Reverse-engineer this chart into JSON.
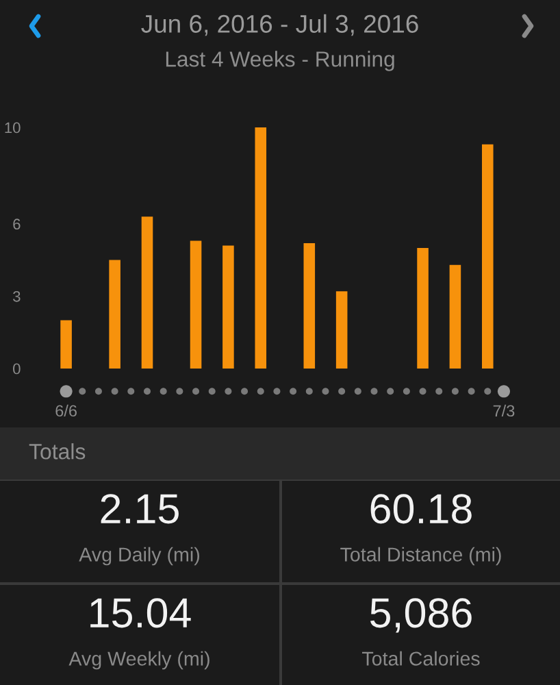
{
  "chart_data": [
    {
      "type": "bar",
      "title": "Jun 6, 2016 - Jul 3, 2016",
      "subtitle": "Last 4 Weeks - Running",
      "categories": [
        "6/6",
        null,
        null,
        null,
        null,
        null,
        null,
        null,
        null,
        null,
        null,
        null,
        null,
        null,
        null,
        null,
        null,
        null,
        null,
        null,
        null,
        null,
        null,
        null,
        null,
        null,
        null,
        "7/3"
      ],
      "values": [
        2.0,
        null,
        null,
        4.5,
        null,
        6.3,
        null,
        null,
        5.3,
        null,
        5.1,
        null,
        10.0,
        null,
        null,
        5.2,
        null,
        3.2,
        null,
        null,
        null,
        null,
        5.0,
        null,
        4.3,
        null,
        9.3,
        null
      ],
      "color": "#f7920c",
      "ylim": [
        0,
        10
      ],
      "yticks": [
        0,
        3,
        6,
        10
      ]
    },
    {
      "type": "other",
      "title": "Totals",
      "annotations": [
        "2.15",
        "Avg Daily (mi)",
        "60.18",
        "Total Distance (mi)",
        "15.04",
        "Avg Weekly (mi)",
        "5,086",
        "Total Calories"
      ]
    }
  ]
}
